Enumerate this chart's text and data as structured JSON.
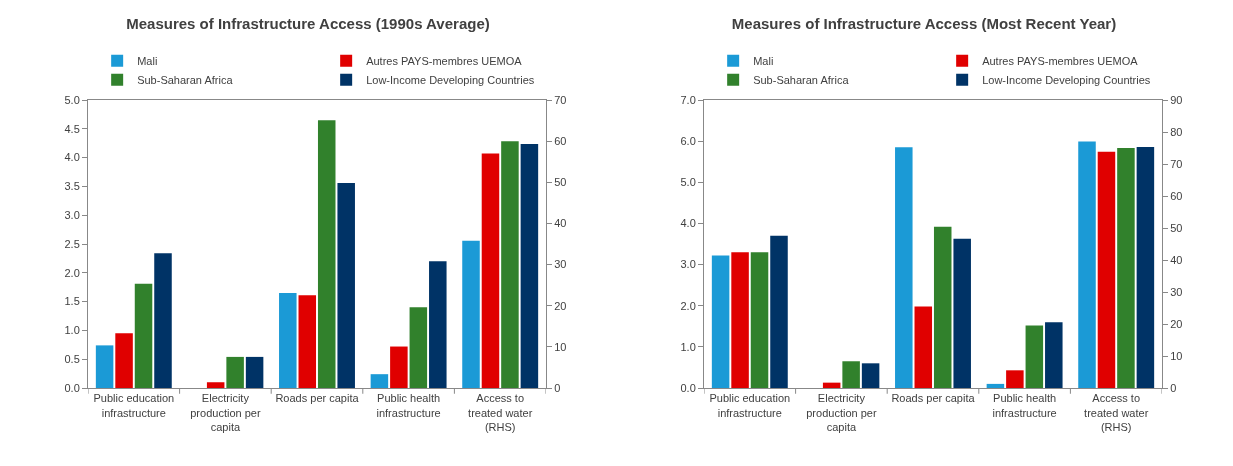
{
  "chart_data": [
    {
      "type": "bar",
      "title": "Measures of Infrastructure Access (1990s Average)",
      "categories": [
        "Public education infrastructure",
        "Electricity production per capita",
        "Roads per capita",
        "Public health infrastructure",
        "Access to treated water (RHS)"
      ],
      "legend": "top",
      "grid": false,
      "series": [
        {
          "name": "Mali",
          "color": "#1b9ad6",
          "values": [
            0.74,
            null,
            1.65,
            0.24,
            null
          ]
        },
        {
          "name": "Autres PAYS-membres UEMOA",
          "color": "#e00000",
          "values": [
            0.95,
            0.1,
            1.61,
            0.72,
            null
          ]
        },
        {
          "name": "Sub-Saharan Africa",
          "color": "#31812c",
          "values": [
            1.81,
            0.54,
            4.65,
            1.4,
            null
          ]
        },
        {
          "name": "Low-Income Developing Countries",
          "color": "#003366",
          "values": [
            2.34,
            0.54,
            3.56,
            2.2,
            null
          ]
        },
        {
          "color": "#1b9ad6",
          "axis": "y2",
          "values": [
            null,
            null,
            null,
            null,
            35.8
          ]
        },
        {
          "color": "#e00000",
          "axis": "y2",
          "values": [
            null,
            null,
            null,
            null,
            57
          ]
        },
        {
          "color": "#31812c",
          "axis": "y2",
          "values": [
            null,
            null,
            null,
            null,
            60
          ]
        },
        {
          "color": "#003366",
          "axis": "y2",
          "values": [
            null,
            null,
            null,
            null,
            59.3
          ]
        }
      ],
      "ylim": [
        0,
        5
      ],
      "yticks": [
        {
          "value": 0,
          "label": "0.0"
        },
        {
          "value": 0.5,
          "label": "0.5"
        },
        {
          "value": 1,
          "label": "1.0"
        },
        {
          "value": 1.5,
          "label": "1.5"
        },
        {
          "value": 2,
          "label": "2.0"
        },
        {
          "value": 2.5,
          "label": "2.5"
        },
        {
          "value": 3,
          "label": "3.0"
        },
        {
          "value": 3.5,
          "label": "3.5"
        },
        {
          "value": 4,
          "label": "4.0"
        },
        {
          "value": 4.5,
          "label": "4.5"
        },
        {
          "value": 5,
          "label": "5.0"
        }
      ],
      "y2lim": [
        0,
        70
      ],
      "y2ticks": [
        0,
        10,
        20,
        30,
        40,
        50,
        60,
        70
      ]
    },
    {
      "type": "bar",
      "title": "Measures of Infrastructure Access (Most Recent Year)",
      "categories": [
        "Public education infrastructure",
        "Electricity production per capita",
        "Roads per capita",
        "Public health infrastructure",
        "Access to treated water (RHS)"
      ],
      "legend": "top",
      "grid": false,
      "series": [
        {
          "name": "Mali",
          "color": "#1b9ad6",
          "values": [
            3.22,
            null,
            5.85,
            0.1,
            null
          ]
        },
        {
          "name": "Autres PAYS-membres UEMOA",
          "color": "#e00000",
          "values": [
            3.3,
            0.13,
            1.98,
            0.43,
            null
          ]
        },
        {
          "name": "Sub-Saharan Africa",
          "color": "#31812c",
          "values": [
            3.3,
            0.65,
            3.92,
            1.52,
            null
          ]
        },
        {
          "name": "Low-Income Developing Countries",
          "color": "#003366",
          "values": [
            3.7,
            0.6,
            3.63,
            1.6,
            null
          ]
        },
        {
          "color": "#1b9ad6",
          "axis": "y2",
          "values": [
            null,
            null,
            null,
            null,
            77
          ]
        },
        {
          "color": "#e00000",
          "axis": "y2",
          "values": [
            null,
            null,
            null,
            null,
            73.8
          ]
        },
        {
          "color": "#31812c",
          "axis": "y2",
          "values": [
            null,
            null,
            null,
            null,
            75
          ]
        },
        {
          "color": "#003366",
          "axis": "y2",
          "values": [
            null,
            null,
            null,
            null,
            75.3
          ]
        }
      ],
      "ylim": [
        0,
        7
      ],
      "yticks": [
        {
          "value": 0,
          "label": "0.0"
        },
        {
          "value": 1,
          "label": "1.0"
        },
        {
          "value": 2,
          "label": "2.0"
        },
        {
          "value": 3,
          "label": "3.0"
        },
        {
          "value": 4,
          "label": "4.0"
        },
        {
          "value": 5,
          "label": "5.0"
        },
        {
          "value": 6,
          "label": "6.0"
        },
        {
          "value": 7,
          "label": "7.0"
        }
      ],
      "y2lim": [
        0,
        90
      ],
      "y2ticks": [
        0,
        10,
        20,
        30,
        40,
        50,
        60,
        70,
        80,
        90
      ]
    }
  ]
}
